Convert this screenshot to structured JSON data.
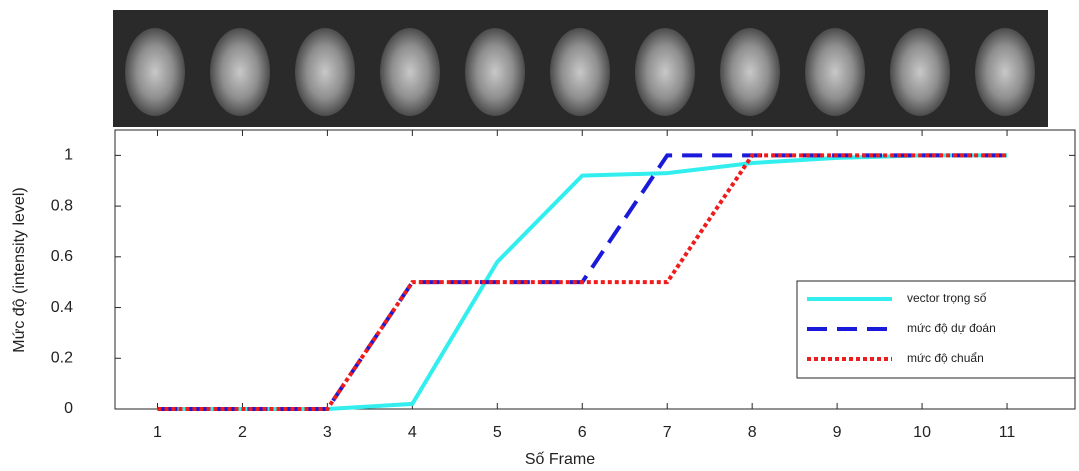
{
  "chart_data": {
    "type": "line",
    "x": [
      1,
      2,
      3,
      4,
      5,
      6,
      7,
      8,
      9,
      10,
      11
    ],
    "xlim": [
      0.5,
      11.8
    ],
    "xticks": [
      1,
      2,
      3,
      4,
      5,
      6,
      7,
      8,
      9,
      10,
      11
    ],
    "ylim": [
      0,
      1.1
    ],
    "yticks": [
      0,
      0.2,
      0.4,
      0.6,
      0.8,
      1
    ],
    "xlabel": "Số Frame",
    "ylabel": "Mức độ (intensity level)",
    "legend": "lower right",
    "series": [
      {
        "name": "vector trọng số",
        "color": "#33eeee",
        "style": "solid",
        "values": [
          0,
          0,
          0,
          0.02,
          0.58,
          0.92,
          0.93,
          0.97,
          0.99,
          1,
          1
        ]
      },
      {
        "name": "mức độ dự đoán",
        "color": "#1a1adb",
        "style": "dashed",
        "values": [
          0,
          0,
          0,
          0.5,
          0.5,
          0.5,
          1,
          1,
          1,
          1,
          1
        ]
      },
      {
        "name": "mức độ chuẩn",
        "color": "#ee1c1c",
        "style": "dotted",
        "values": [
          0,
          0,
          0,
          0.5,
          0.5,
          0.5,
          0.5,
          1,
          1,
          1,
          1
        ]
      }
    ]
  }
}
